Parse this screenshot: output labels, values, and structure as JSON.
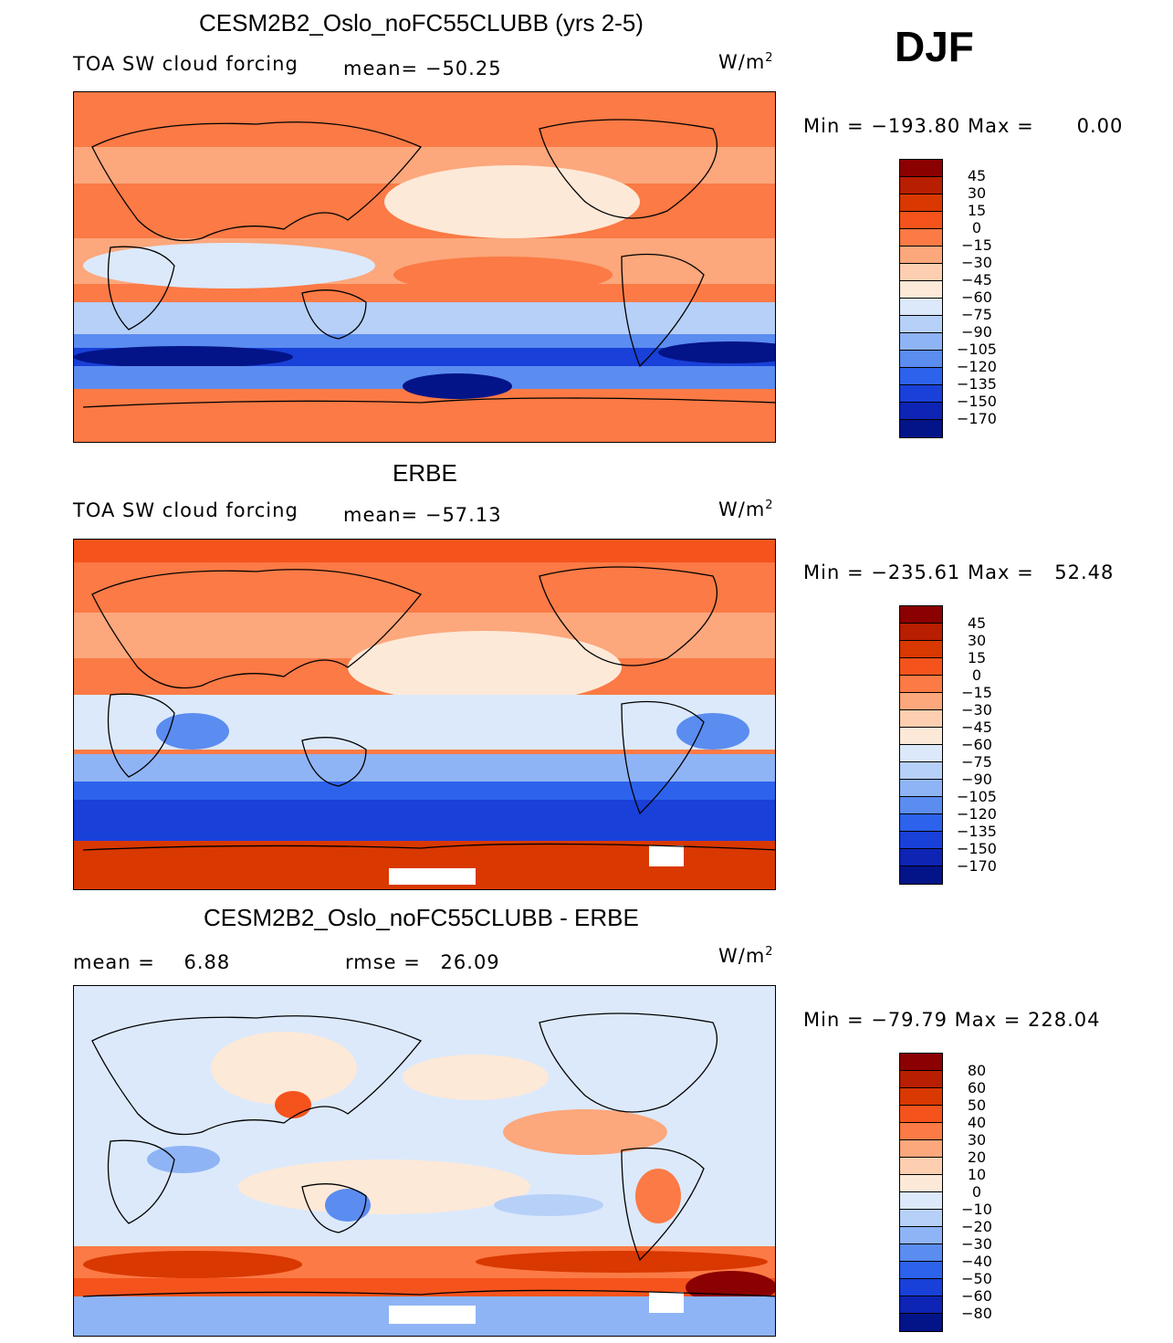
{
  "season": "DJF",
  "colorbar_colors": [
    "#8b0000",
    "#b81e00",
    "#d93800",
    "#f5531c",
    "#fb7a45",
    "#fca77c",
    "#fdcfb0",
    "#fde9d8",
    "#dce9fb",
    "#b7d0f8",
    "#8fb4f5",
    "#5b8cf0",
    "#2d63ec",
    "#1940d8",
    "#0d24b4",
    "#031488"
  ],
  "panels": [
    {
      "title": "CESM2B2_Oslo_noFC55CLUBB (yrs 2-5)",
      "left_label": "TOA SW cloud forcing",
      "middle_label": "mean=",
      "middle_value": "−50.25",
      "units_base": "W/m",
      "units_exp": "2",
      "min_label": "Min",
      "min_value": "−193.80",
      "max_label": "Max",
      "max_value": "0.00",
      "colorbar_levels": [
        "45",
        "30",
        "15",
        "0",
        "−15",
        "−30",
        "−45",
        "−60",
        "−75",
        "−90",
        "−105",
        "−120",
        "−135",
        "−150",
        "−170"
      ]
    },
    {
      "title": "ERBE",
      "left_label": "TOA SW cloud forcing",
      "middle_label": "mean=",
      "middle_value": "−57.13",
      "units_base": "W/m",
      "units_exp": "2",
      "min_label": "Min",
      "min_value": "−235.61",
      "max_label": "Max",
      "max_value": "52.48",
      "colorbar_levels": [
        "45",
        "30",
        "15",
        "0",
        "−15",
        "−30",
        "−45",
        "−60",
        "−75",
        "−90",
        "−105",
        "−120",
        "−135",
        "−150",
        "−170"
      ]
    },
    {
      "title": "CESM2B2_Oslo_noFC55CLUBB - ERBE",
      "left_label": "mean =",
      "left_value": "6.88",
      "middle_label": "rmse =",
      "middle_value": "26.09",
      "units_base": "W/m",
      "units_exp": "2",
      "min_label": "Min",
      "min_value": "−79.79",
      "max_label": "Max",
      "max_value": "228.04",
      "colorbar_levels": [
        "80",
        "60",
        "50",
        "40",
        "30",
        "20",
        "10",
        "0",
        "−10",
        "−20",
        "−30",
        "−40",
        "−50",
        "−60",
        "−80"
      ]
    }
  ]
}
